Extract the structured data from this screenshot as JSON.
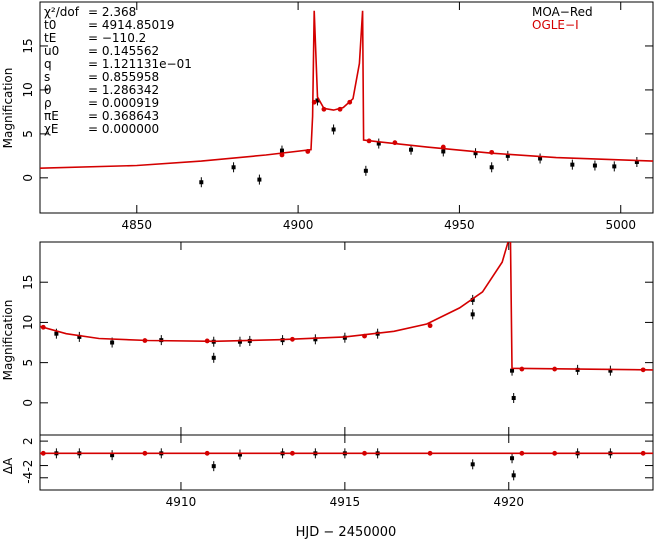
{
  "figure": {
    "xlabel": "HJD − 2450000",
    "legend": [
      {
        "label": "MOA−Red",
        "color": "#000000"
      },
      {
        "label": "OGLE−I",
        "color": "#d40000"
      }
    ],
    "params": [
      {
        "name": "χ²/dof",
        "value": "= 2.368"
      },
      {
        "name": "t0",
        "value": "= 4914.85019"
      },
      {
        "name": "tE",
        "value": "= −110.2"
      },
      {
        "name": "u0",
        "value": "= 0.145562"
      },
      {
        "name": "q",
        "value": "= 1.121131e−01"
      },
      {
        "name": "s",
        "value": "= 0.855958"
      },
      {
        "name": "θ",
        "value": "= 1.286342"
      },
      {
        "name": "ρ",
        "value": "= 0.000919"
      },
      {
        "name": "πE",
        "value": "= 0.368643"
      },
      {
        "name": "χE",
        "value": "= 0.000000"
      }
    ]
  },
  "chart_data": [
    {
      "type": "scatter",
      "title": "",
      "xlabel": "",
      "ylabel": "Magnification",
      "xlim": [
        4820,
        5010
      ],
      "ylim": [
        -4,
        20
      ],
      "xticks": [
        4850,
        4900,
        4950,
        5000
      ],
      "yticks": [
        0,
        5,
        10,
        15
      ],
      "model": [
        [
          4820,
          1.1
        ],
        [
          4850,
          1.4
        ],
        [
          4870,
          1.9
        ],
        [
          4890,
          2.6
        ],
        [
          4904,
          3.2
        ],
        [
          4904.5,
          7
        ],
        [
          4905,
          19
        ],
        [
          4906,
          9.2
        ],
        [
          4908,
          7.9
        ],
        [
          4911,
          7.7
        ],
        [
          4914,
          8
        ],
        [
          4917,
          9
        ],
        [
          4919,
          13
        ],
        [
          4920,
          19
        ],
        [
          4920.3,
          4.3
        ],
        [
          4925,
          4.1
        ],
        [
          4940,
          3.5
        ],
        [
          4960,
          2.8
        ],
        [
          4980,
          2.3
        ],
        [
          5010,
          1.9
        ]
      ],
      "series": [
        {
          "name": "MOA−Red",
          "points": [
            [
              4870,
              -0.5
            ],
            [
              4880,
              1.2
            ],
            [
              4888,
              -0.2
            ],
            [
              4895,
              3.1
            ],
            [
              4906,
              8.8
            ],
            [
              4911,
              5.5
            ],
            [
              4921,
              0.8
            ],
            [
              4925,
              3.9
            ],
            [
              4935,
              3.2
            ],
            [
              4945,
              3.0
            ],
            [
              4955,
              2.8
            ],
            [
              4960,
              1.2
            ],
            [
              4965,
              2.5
            ],
            [
              4975,
              2.2
            ],
            [
              4985,
              1.5
            ],
            [
              4992,
              1.4
            ],
            [
              4998,
              1.3
            ],
            [
              5005,
              1.8
            ]
          ]
        },
        {
          "name": "OGLE−I",
          "points": [
            [
              4895,
              2.6
            ],
            [
              4903,
              3.0
            ],
            [
              4905,
              8.6
            ],
            [
              4908,
              7.8
            ],
            [
              4913,
              7.8
            ],
            [
              4916,
              8.6
            ],
            [
              4922,
              4.2
            ],
            [
              4930,
              4.0
            ],
            [
              4945,
              3.5
            ],
            [
              4960,
              2.9
            ]
          ]
        }
      ]
    },
    {
      "type": "scatter",
      "title": "",
      "xlabel": "",
      "ylabel": "Magnification",
      "xlim": [
        4905.7,
        4924.4
      ],
      "ylim": [
        -4,
        20
      ],
      "xticks": [
        4910,
        4915,
        4920
      ],
      "yticks": [
        0,
        5,
        10,
        15
      ],
      "model": [
        [
          4905.7,
          9.5
        ],
        [
          4906.5,
          8.6
        ],
        [
          4907.5,
          8.0
        ],
        [
          4909,
          7.75
        ],
        [
          4911,
          7.65
        ],
        [
          4913,
          7.85
        ],
        [
          4915,
          8.2
        ],
        [
          4916.5,
          8.9
        ],
        [
          4917.5,
          9.8
        ],
        [
          4918.5,
          11.8
        ],
        [
          4919.2,
          13.8
        ],
        [
          4919.8,
          17.5
        ],
        [
          4920.05,
          21
        ],
        [
          4920.1,
          4.3
        ],
        [
          4924.4,
          4.1
        ]
      ],
      "series": [
        {
          "name": "MOA−Red",
          "points": [
            [
              4906.2,
              8.6
            ],
            [
              4906.9,
              8.2
            ],
            [
              4907.9,
              7.5
            ],
            [
              4909.4,
              7.8
            ],
            [
              4911.0,
              7.6
            ],
            [
              4911.0,
              5.6
            ],
            [
              4911.8,
              7.6
            ],
            [
              4912.1,
              7.7
            ],
            [
              4913.1,
              7.8
            ],
            [
              4914.1,
              7.9
            ],
            [
              4915.0,
              8.1
            ],
            [
              4916.0,
              8.6
            ],
            [
              4918.9,
              12.8
            ],
            [
              4918.9,
              11.0
            ],
            [
              4920.1,
              4.0
            ],
            [
              4920.15,
              0.6
            ],
            [
              4922.1,
              4.1
            ],
            [
              4923.1,
              4.0
            ]
          ]
        },
        {
          "name": "OGLE−I",
          "points": [
            [
              4905.8,
              9.4
            ],
            [
              4908.9,
              7.75
            ],
            [
              4910.8,
              7.7
            ],
            [
              4913.4,
              7.9
            ],
            [
              4915.6,
              8.3
            ],
            [
              4917.6,
              9.6
            ],
            [
              4920.4,
              4.2
            ],
            [
              4921.4,
              4.2
            ],
            [
              4924.1,
              4.1
            ]
          ]
        }
      ]
    },
    {
      "type": "scatter",
      "title": "",
      "xlabel": "HJD − 2450000",
      "ylabel": "ΔA",
      "xlim": [
        4905.7,
        4924.4
      ],
      "ylim": [
        -6,
        3
      ],
      "xticks": [
        4910,
        4915,
        4920
      ],
      "yticks": [
        2,
        -2,
        -4
      ],
      "model": [
        [
          4905.7,
          0
        ],
        [
          4924.4,
          0
        ]
      ],
      "series": [
        {
          "name": "MOA−Red",
          "points": [
            [
              4906.2,
              0
            ],
            [
              4906.9,
              0
            ],
            [
              4907.9,
              -0.3
            ],
            [
              4909.4,
              0
            ],
            [
              4911.0,
              -2.1
            ],
            [
              4911.8,
              -0.2
            ],
            [
              4913.1,
              0
            ],
            [
              4914.1,
              0
            ],
            [
              4915.0,
              0
            ],
            [
              4916.0,
              0
            ],
            [
              4918.9,
              -1.8
            ],
            [
              4920.1,
              -0.8
            ],
            [
              4920.15,
              -3.6
            ],
            [
              4922.1,
              0
            ],
            [
              4923.1,
              0
            ]
          ]
        },
        {
          "name": "OGLE−I",
          "points": [
            [
              4905.8,
              0
            ],
            [
              4908.9,
              0
            ],
            [
              4910.8,
              0
            ],
            [
              4913.4,
              0
            ],
            [
              4915.6,
              0
            ],
            [
              4917.6,
              0
            ],
            [
              4920.4,
              0
            ],
            [
              4921.4,
              0
            ],
            [
              4924.1,
              0
            ]
          ]
        }
      ]
    }
  ]
}
